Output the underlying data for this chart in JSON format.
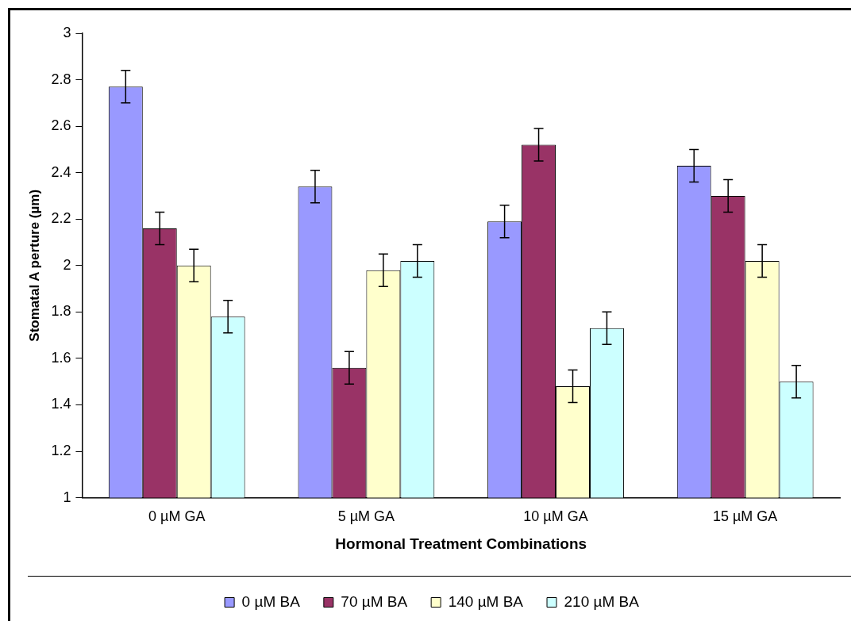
{
  "chart_data": {
    "type": "bar",
    "xlabel": "Hormonal Treatment Combinations",
    "ylabel": "Stomatal A perture (µm)",
    "categories": [
      "0 µM GA",
      "5 µM GA",
      "10 µM GA",
      "15 µM GA"
    ],
    "series": [
      {
        "name": "0 µM BA",
        "color": "#9999ff",
        "values": [
          2.77,
          2.34,
          2.19,
          2.43
        ],
        "errors": [
          0.07,
          0.07,
          0.07,
          0.07
        ]
      },
      {
        "name": "70 µM BA",
        "color": "#993366",
        "values": [
          2.16,
          1.56,
          2.52,
          2.3
        ],
        "errors": [
          0.07,
          0.07,
          0.07,
          0.07
        ]
      },
      {
        "name": "140 µM BA",
        "color": "#ffffcc",
        "values": [
          2.0,
          1.98,
          1.48,
          2.02
        ],
        "errors": [
          0.07,
          0.07,
          0.07,
          0.07
        ]
      },
      {
        "name": "210 µM BA",
        "color": "#ccffff",
        "values": [
          1.78,
          2.02,
          1.73,
          1.5
        ],
        "errors": [
          0.07,
          0.07,
          0.07,
          0.07
        ]
      }
    ],
    "ylim": [
      1,
      3
    ],
    "yticks": [
      1,
      1.2,
      1.4,
      1.6,
      1.8,
      2,
      2.2,
      2.4,
      2.6,
      2.8,
      3
    ],
    "grid": false,
    "legend": "bottom"
  }
}
